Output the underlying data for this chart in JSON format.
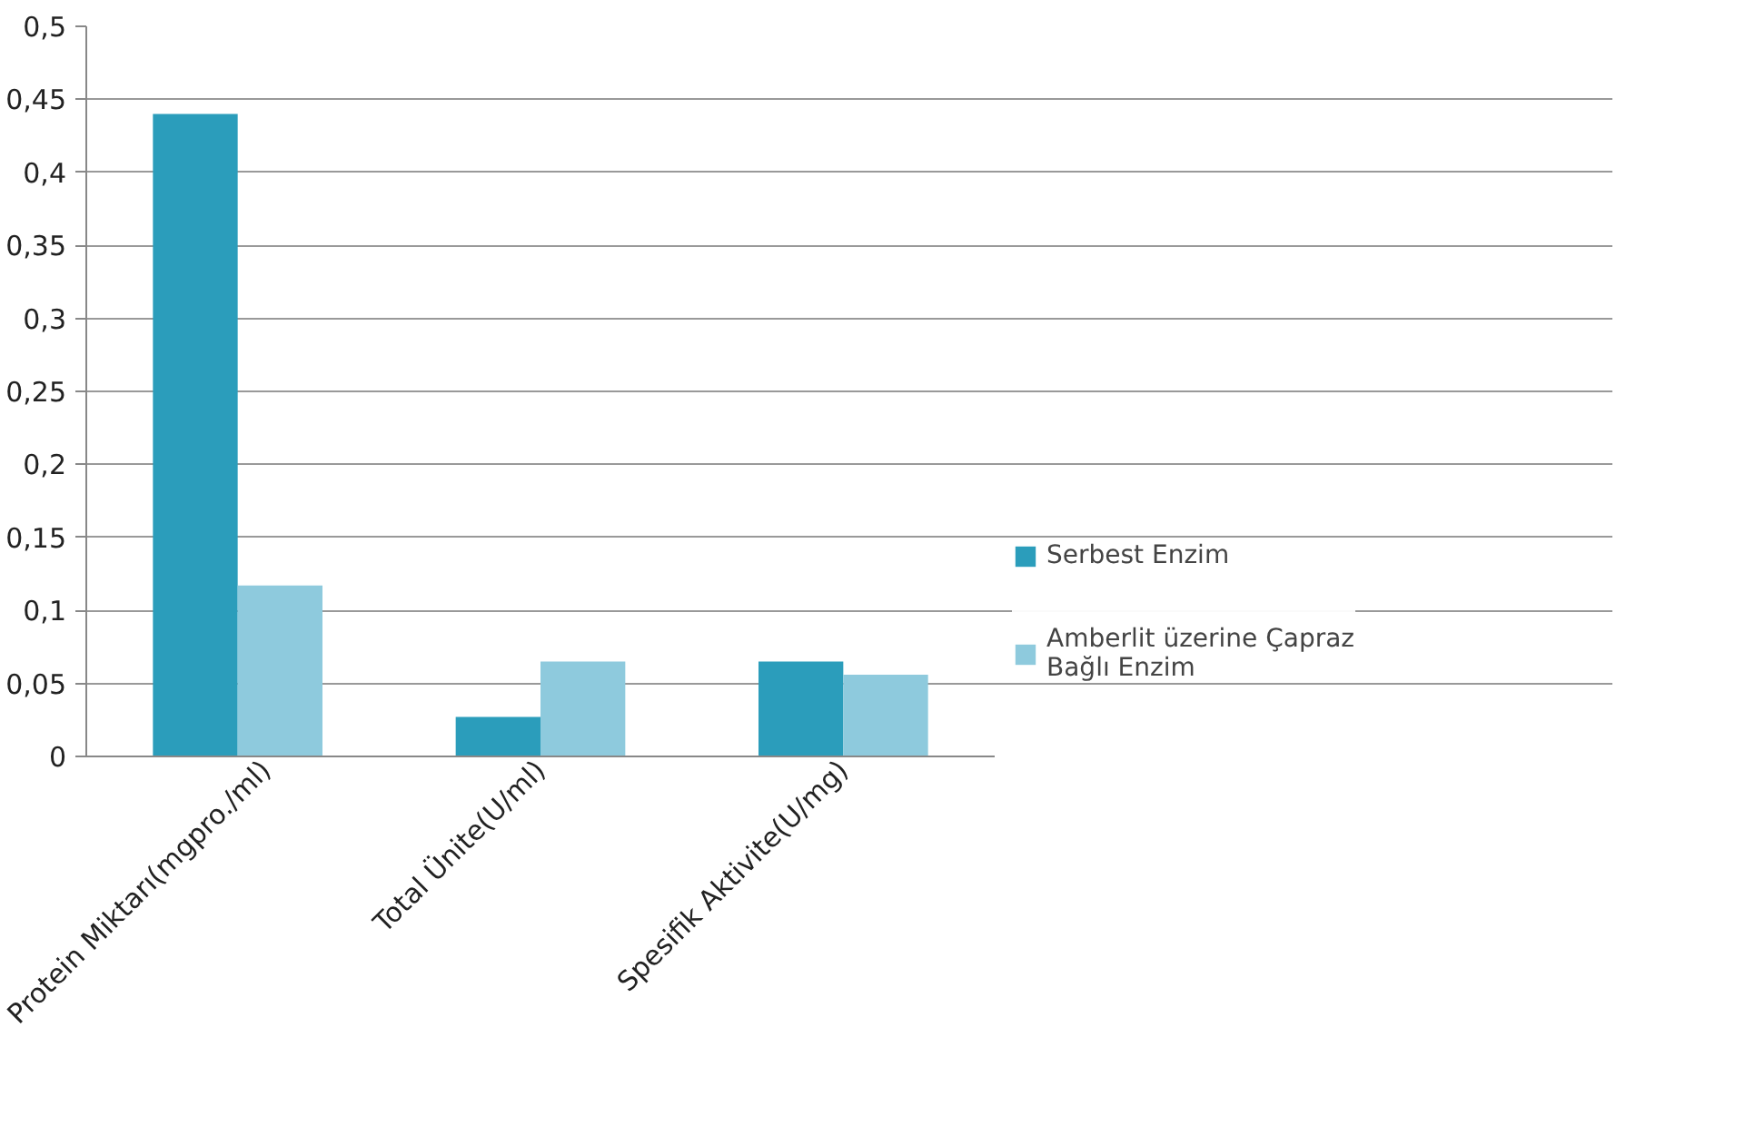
{
  "chart_data": {
    "type": "bar",
    "categories": [
      "Protein Miktarı(mgpro./ml)",
      "Total Ünite(U/ml)",
      "Spesifik Aktivite(U/mg)"
    ],
    "series": [
      {
        "name": "Serbest Enzim",
        "color": "#2b9dbb",
        "values": [
          0.44,
          0.027,
          0.065
        ]
      },
      {
        "name": "Amberlit üzerine Çapraz Bağlı Enzim",
        "color": "#8ecadd",
        "values": [
          0.117,
          0.065,
          0.056
        ]
      }
    ],
    "ylim": [
      0,
      0.5
    ],
    "yticks": [
      0,
      {
        "value": 0.05,
        "label": "0,05"
      },
      {
        "value": 0.1,
        "label": "0,1"
      },
      {
        "value": 0.15,
        "label": "0,15"
      },
      {
        "value": 0.2,
        "label": "0,2"
      },
      {
        "value": 0.25,
        "label": "0,25"
      },
      {
        "value": 0.3,
        "label": "0,3"
      },
      {
        "value": 0.35,
        "label": "0,35"
      },
      {
        "value": 0.4,
        "label": "0,4"
      },
      {
        "value": 0.45,
        "label": "0,45"
      },
      {
        "value": 0.5,
        "label": "0,5"
      }
    ],
    "grid": "y",
    "legend": "right"
  }
}
